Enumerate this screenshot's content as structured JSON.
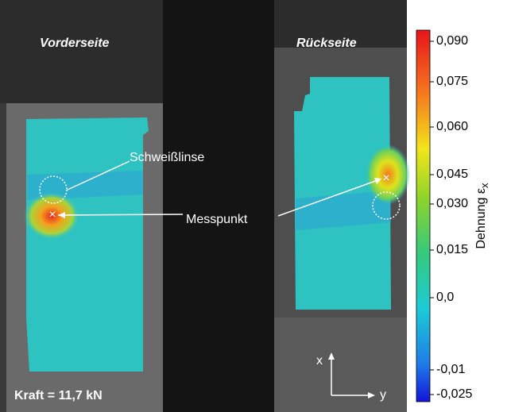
{
  "labels": {
    "front": "Vorderseite",
    "back": "Rückseite",
    "weld": "Schweißlinse",
    "point": "Messpunkt",
    "force": "Kraft = 11,7 kN",
    "axis_x": "x",
    "axis_y": "y"
  },
  "colorbar": {
    "label": "Dehnung ε",
    "label_subscript": "x",
    "ticks": [
      "0,090",
      "0,075",
      "0,060",
      "0,045",
      "0,030",
      "0,015",
      "0,0",
      "-0,01",
      "-0,025"
    ]
  }
}
